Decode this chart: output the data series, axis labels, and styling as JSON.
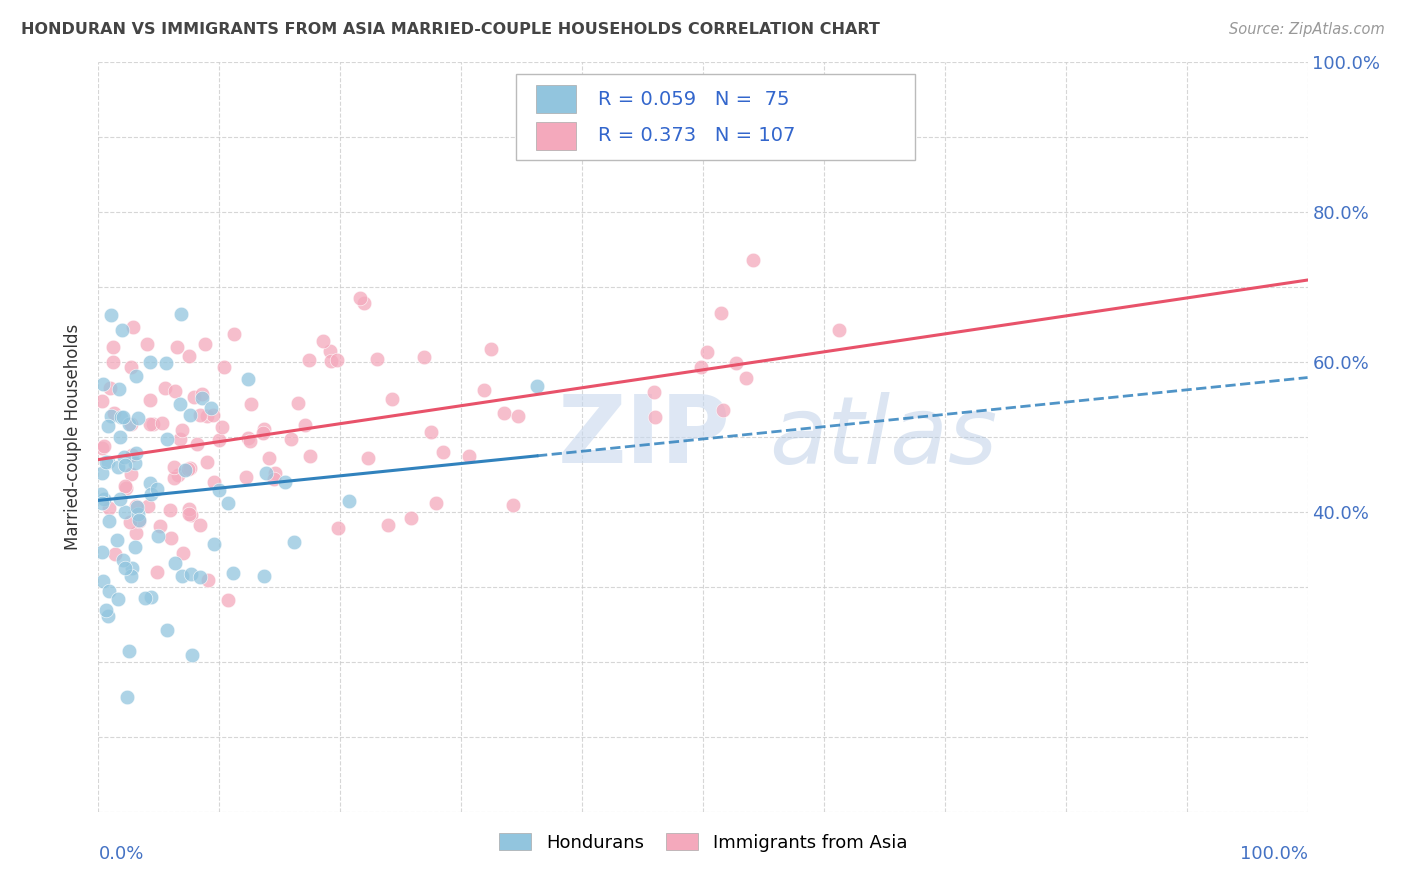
{
  "title": "HONDURAN VS IMMIGRANTS FROM ASIA MARRIED-COUPLE HOUSEHOLDS CORRELATION CHART",
  "source": "Source: ZipAtlas.com",
  "ylabel": "Married-couple Households",
  "legend_label1": "Hondurans",
  "legend_label2": "Immigrants from Asia",
  "r1": 0.059,
  "n1": 75,
  "r2": 0.373,
  "n2": 107,
  "blue_color": "#92c5de",
  "pink_color": "#f4a9bc",
  "blue_line_color": "#3182bd",
  "pink_line_color": "#e8526a",
  "xlim": [
    0.0,
    1.0
  ],
  "ylim": [
    0.0,
    1.0
  ],
  "ytick_positions": [
    0.4,
    0.6,
    0.8,
    1.0
  ],
  "ytick_labels": [
    "40.0%",
    "60.0%",
    "80.0%",
    "100.0%"
  ],
  "blue_seed": 77,
  "pink_seed": 33
}
